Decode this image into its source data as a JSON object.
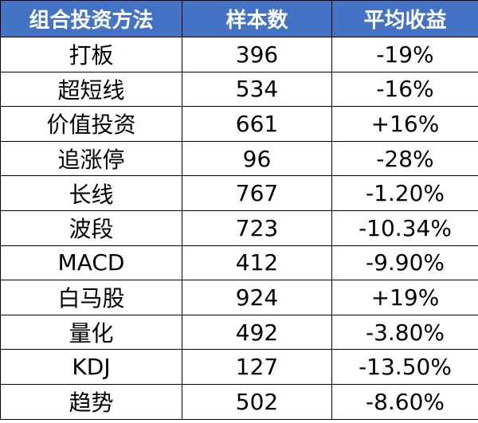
{
  "colors": {
    "header_bg": "#4472c4",
    "header_text": "#ffffff",
    "negative": "#00a651",
    "positive": "#ff0000"
  },
  "headers": [
    "组合投资方法",
    "样本数",
    "平均收益"
  ],
  "rows": [
    {
      "method": "打板",
      "samples": "396",
      "avg_return": "-19%",
      "sign": "negative"
    },
    {
      "method": "超短线",
      "samples": "534",
      "avg_return": "-16%",
      "sign": "negative"
    },
    {
      "method": "价值投资",
      "samples": "661",
      "avg_return": "+16%",
      "sign": "positive"
    },
    {
      "method": "追涨停",
      "samples": "96",
      "avg_return": "-28%",
      "sign": "negative"
    },
    {
      "method": "长线",
      "samples": "767",
      "avg_return": "-1.20%",
      "sign": "negative"
    },
    {
      "method": "波段",
      "samples": "723",
      "avg_return": "-10.34%",
      "sign": "negative"
    },
    {
      "method": "MACD",
      "samples": "412",
      "avg_return": "-9.90%",
      "sign": "negative"
    },
    {
      "method": "白马股",
      "samples": "924",
      "avg_return": "+19%",
      "sign": "positive"
    },
    {
      "method": "量化",
      "samples": "492",
      "avg_return": "-3.80%",
      "sign": "negative"
    },
    {
      "method": "KDJ",
      "samples": "127",
      "avg_return": "-13.50%",
      "sign": "negative"
    },
    {
      "method": "趋势",
      "samples": "502",
      "avg_return": "-8.60%",
      "sign": "negative"
    }
  ]
}
